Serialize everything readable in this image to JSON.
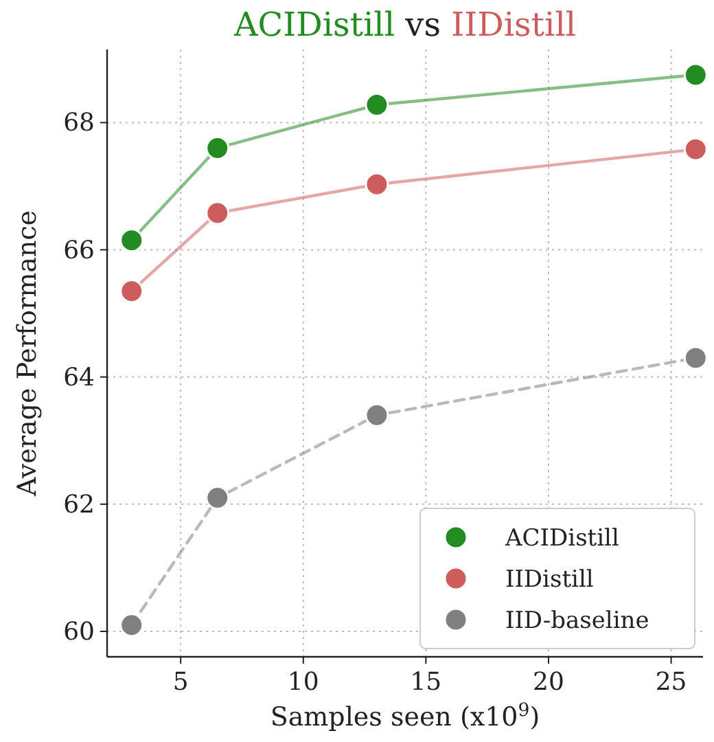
{
  "chart_data": {
    "type": "line",
    "title": "ACIDistill vs IIDistill",
    "xlabel": "Samples seen (x10$^{9}$)",
    "ylabel": "Average Performance",
    "x": [
      3,
      6.5,
      13,
      26
    ],
    "series": [
      {
        "name": "ACIDistill",
        "color": "#228b22",
        "values": [
          66.15,
          67.6,
          68.28,
          68.75
        ]
      },
      {
        "name": "IIDistill",
        "color": "#cd5c5c",
        "values": [
          65.35,
          66.58,
          67.03,
          67.58
        ]
      },
      {
        "name": "IID-baseline",
        "color": "#808080",
        "values": [
          60.1,
          62.1,
          63.4,
          64.3
        ],
        "line_style": "dashed"
      }
    ],
    "xlim": [
      2,
      26.3
    ],
    "xticks": [
      5,
      10,
      15,
      20,
      25
    ],
    "ylim": [
      59.6,
      69.15
    ],
    "yticks": [
      60,
      62,
      64,
      66,
      68
    ],
    "grid": true,
    "legend": "bottom right",
    "marker": "circle",
    "line_style": "solid"
  }
}
